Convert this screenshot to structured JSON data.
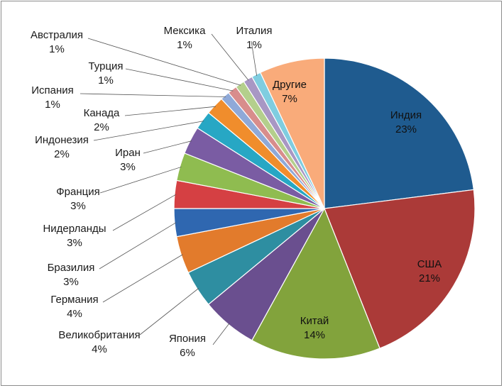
{
  "chart_data": {
    "type": "pie",
    "title": "",
    "slices": [
      {
        "label": "Индия",
        "value": 23,
        "value_label": "23%",
        "color": "#1f5b8f"
      },
      {
        "label": "США",
        "value": 21,
        "value_label": "21%",
        "color": "#ab3a38"
      },
      {
        "label": "Китай",
        "value": 14,
        "value_label": "14%",
        "color": "#82a33c"
      },
      {
        "label": "Япония",
        "value": 6,
        "value_label": "6%",
        "color": "#6a4f8f"
      },
      {
        "label": "Великобритания",
        "value": 4,
        "value_label": "4%",
        "color": "#2e8ea1"
      },
      {
        "label": "Германия",
        "value": 4,
        "value_label": "4%",
        "color": "#e27b2c"
      },
      {
        "label": "Бразилия",
        "value": 3,
        "value_label": "3%",
        "color": "#2f67b0"
      },
      {
        "label": "Нидерланды",
        "value": 3,
        "value_label": "3%",
        "color": "#d54043"
      },
      {
        "label": "Франция",
        "value": 3,
        "value_label": "3%",
        "color": "#8fbc50"
      },
      {
        "label": "Иран",
        "value": 3,
        "value_label": "3%",
        "color": "#7a5ca3"
      },
      {
        "label": "Индонезия",
        "value": 2,
        "value_label": "2%",
        "color": "#27a7c4"
      },
      {
        "label": "Канада",
        "value": 2,
        "value_label": "2%",
        "color": "#f08d2c"
      },
      {
        "label": "Испания",
        "value": 1,
        "value_label": "1%",
        "color": "#8fa9d8"
      },
      {
        "label": "Турция",
        "value": 1,
        "value_label": "1%",
        "color": "#d88d8c"
      },
      {
        "label": "Австралия",
        "value": 1,
        "value_label": "1%",
        "color": "#b4cf8c"
      },
      {
        "label": "Мексика",
        "value": 1,
        "value_label": "1%",
        "color": "#a897c4"
      },
      {
        "label": "Италия",
        "value": 1,
        "value_label": "1%",
        "color": "#7fcde0"
      },
      {
        "label": "Другие",
        "value": 7,
        "value_label": "7%",
        "color": "#f9ab7a"
      }
    ]
  }
}
